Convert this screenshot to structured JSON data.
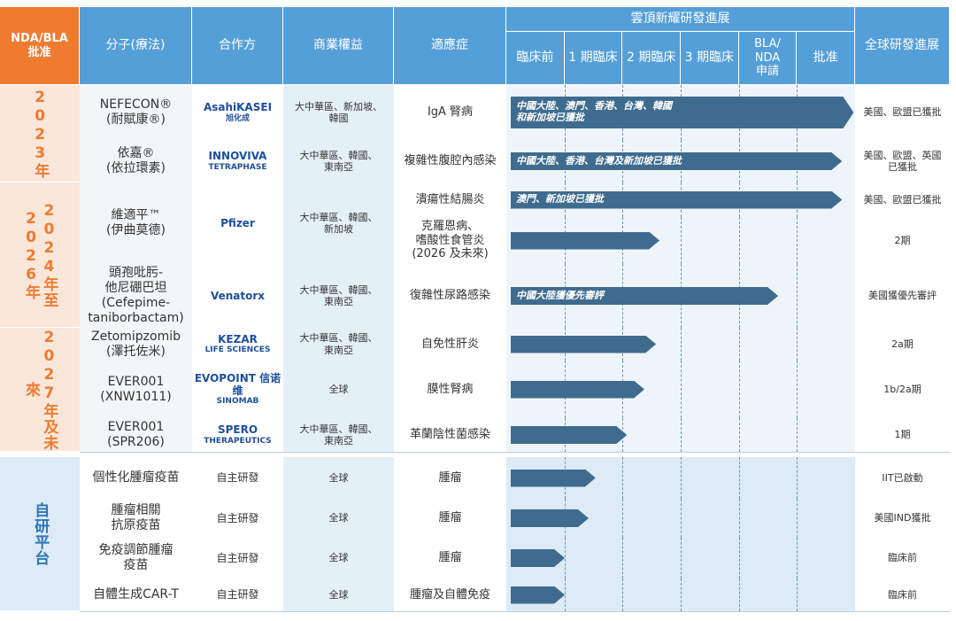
{
  "header": {
    "approval": "NDA/BLA\n批准",
    "molecule": "分子(療法)",
    "partner": "合作方",
    "rights": "商業權益",
    "indication": "適應症",
    "progress_title": "雲頂新耀研發進展",
    "stages": [
      "臨床前",
      "1 期臨床",
      "2 期臨床",
      "3 期臨床",
      "BLA/\nNDA\n申請",
      "批准"
    ],
    "global": "全球研發進展"
  },
  "groups": [
    {
      "label": "2023年",
      "rows": [
        {
          "molecule": "NEFECON®\n(耐賦康®)",
          "partner": [
            "AsahiKASEI",
            "旭化成"
          ],
          "rights": "大中華區、新加坡、\n韓國",
          "indications": [
            {
              "name": "IgA 腎病",
              "progress": 5.9,
              "bar_label": "中國大陸、澳門、香港、台灣、韓國\n和新加坡已獲批",
              "global": "美國、歐盟已獲批"
            }
          ]
        },
        {
          "molecule": "依嘉®\n(依拉環素)",
          "partner": [
            "INNOVIVA",
            "TETRAPHASE"
          ],
          "rights": "大中華區、韓國、\n東南亞",
          "indications": [
            {
              "name": "複雜性腹腔內感染",
              "progress": 5.7,
              "bar_label": "中國大陸、香港、台灣及新加坡已獲批",
              "global": "美國、歐盟、英國\n已獲批"
            }
          ]
        }
      ]
    },
    {
      "label": "2024年至\n2026年",
      "rows": [
        {
          "molecule": "維適平™\n(伊曲莫德)",
          "partner": [
            "Pfizer"
          ],
          "rights": "大中華區、韓國、\n新加坡",
          "indications": [
            {
              "name": "潰瘍性結腸炎",
              "progress": 5.7,
              "bar_label": "澳門、新加坡已獲批",
              "global": "美國、歐盟已獲批"
            },
            {
              "name": "克羅恩病、\n嗜酸性食管炎\n(2026 及未來)",
              "progress": 2.56,
              "global": "2期"
            }
          ]
        },
        {
          "molecule": "頭孢吡肟-\n他尼硼巴坦\n(Cefepime-\ntaniborbactam)",
          "partner": [
            "Venatorx"
          ],
          "rights": "大中華區、韓國、\n東南亞",
          "indications": [
            {
              "name": "復雜性尿路感染",
              "progress": 4.6,
              "bar_label": "中國大陸獲優先審評",
              "global": "美國獲優先審評"
            }
          ]
        }
      ]
    },
    {
      "label": "2027年及未來",
      "rows": [
        {
          "molecule": "Zetomipzomib\n(澤托佐米)",
          "partner": [
            "KEZAR",
            "LIFE SCIENCES"
          ],
          "rights": "大中華區、韓國、\n東南亞",
          "indications": [
            {
              "name": "自免性肝炎",
              "progress": 2.5,
              "global": "2a期"
            }
          ]
        },
        {
          "molecule": "EVER001\n(XNW1011)",
          "partner": [
            "EVOPOINT 信诺维",
            "SINOMAB"
          ],
          "rights": "全球",
          "indications": [
            {
              "name": "膜性腎病",
              "progress": 2.3,
              "global": "1b/2a期"
            }
          ]
        },
        {
          "molecule": "EVER001\n(SPR206)",
          "partner": [
            "SPERO",
            "THERAPEUTICS"
          ],
          "rights": "大中華區、韓國、\n東南亞",
          "indications": [
            {
              "name": "革蘭陰性菌感染",
              "progress": 2.0,
              "global": "1期"
            }
          ]
        }
      ]
    },
    {
      "label": "自研平台",
      "rows": [
        {
          "molecule": "個性化腫瘤疫苗",
          "partner": [
            "自主研發"
          ],
          "rights": "全球",
          "indications": [
            {
              "name": "腫瘤",
              "progress": 1.46,
              "global": "IIT已啟動"
            }
          ]
        },
        {
          "molecule": "腫瘤相關\n抗原疫苗",
          "partner": [
            "自主研發"
          ],
          "rights": "全球",
          "indications": [
            {
              "name": "腫瘤",
              "progress": 1.34,
              "global": "美國IND獲批"
            }
          ]
        },
        {
          "molecule": "免疫調節腫瘤\n疫苗",
          "partner": [
            "自主研發"
          ],
          "rights": "全球",
          "indications": [
            {
              "name": "腫瘤",
              "progress": 0.93,
              "global": "臨床前"
            }
          ]
        },
        {
          "molecule": "自體生成CAR-T",
          "partner": [
            "自主研發"
          ],
          "rights": "全球",
          "indications": [
            {
              "name": "腫瘤及自體免疫",
              "progress": 0.93,
              "global": "臨床前"
            }
          ]
        }
      ]
    }
  ]
}
